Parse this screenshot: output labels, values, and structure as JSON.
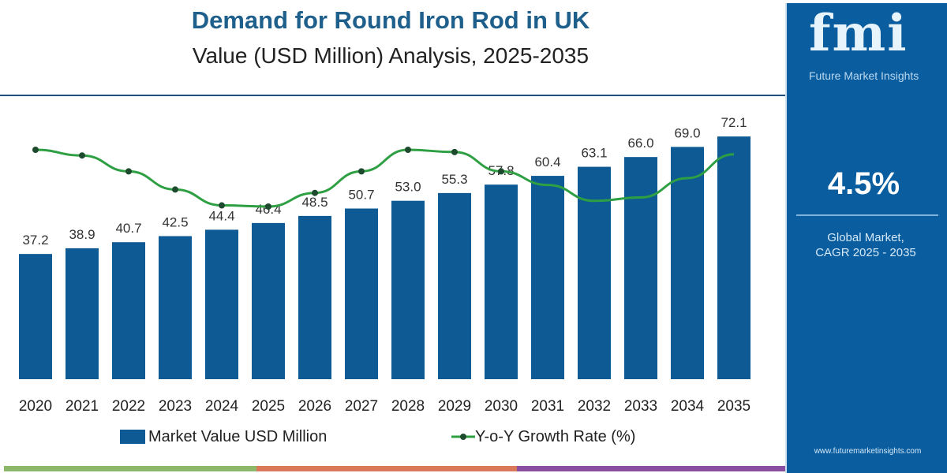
{
  "header": {
    "title": "Demand for Round Iron Rod in UK",
    "subtitle": "Value (USD Million) Analysis, 2025-2035"
  },
  "chart_data": {
    "type": "bar",
    "title": "Demand for Round Iron Rod in UK",
    "subtitle": "Value (USD Million) Analysis, 2025-2035",
    "categories": [
      "2020",
      "2021",
      "2022",
      "2023",
      "2024",
      "2025",
      "2026",
      "2027",
      "2028",
      "2029",
      "2030",
      "2031",
      "2032",
      "2033",
      "2034",
      "2035"
    ],
    "series": [
      {
        "name": "Market Value USD Million",
        "type": "bar",
        "color": "#0d5a94",
        "values": [
          37.2,
          38.9,
          40.7,
          42.5,
          44.4,
          46.4,
          48.5,
          50.7,
          53.0,
          55.3,
          57.8,
          60.4,
          63.1,
          66.0,
          69.0,
          72.1
        ],
        "labels": [
          "37.2",
          "38.9",
          "40.7",
          "42.5",
          "44.4",
          "46.4",
          "48.5",
          "50.7",
          "53.0",
          "55.3",
          "57.8",
          "60.4",
          "63.1",
          "66.0",
          "69.0",
          "72.1"
        ]
      },
      {
        "name": "Y-o-Y Growth Rate (%)",
        "type": "line",
        "color": "#2ea043",
        "axis": "hidden",
        "values": [
          4.8,
          4.75,
          4.61,
          4.45,
          4.31,
          4.3,
          4.42,
          4.61,
          4.8,
          4.78,
          4.61,
          4.49,
          4.35,
          4.38,
          4.55,
          4.76
        ]
      }
    ],
    "ylim": [
      0,
      80
    ],
    "grid": false,
    "legend": "bottom"
  },
  "legend": {
    "bar": "Market Value USD Million",
    "line": "Y-o-Y Growth Rate (%)"
  },
  "panel": {
    "logo": "fmi",
    "logo_sub": "Future Market Insights",
    "cagr": "4.5%",
    "label_line1": "Global Market,",
    "label_line2": "CAGR 2025 - 2035",
    "url": "www.futuremarketinsights.com"
  },
  "colors": {
    "bar": "#0d5a94",
    "line": "#2ea043",
    "panel": "#0a5ea0",
    "stripes": [
      "#8db86a",
      "#d9795a",
      "#8a4f9e"
    ]
  }
}
